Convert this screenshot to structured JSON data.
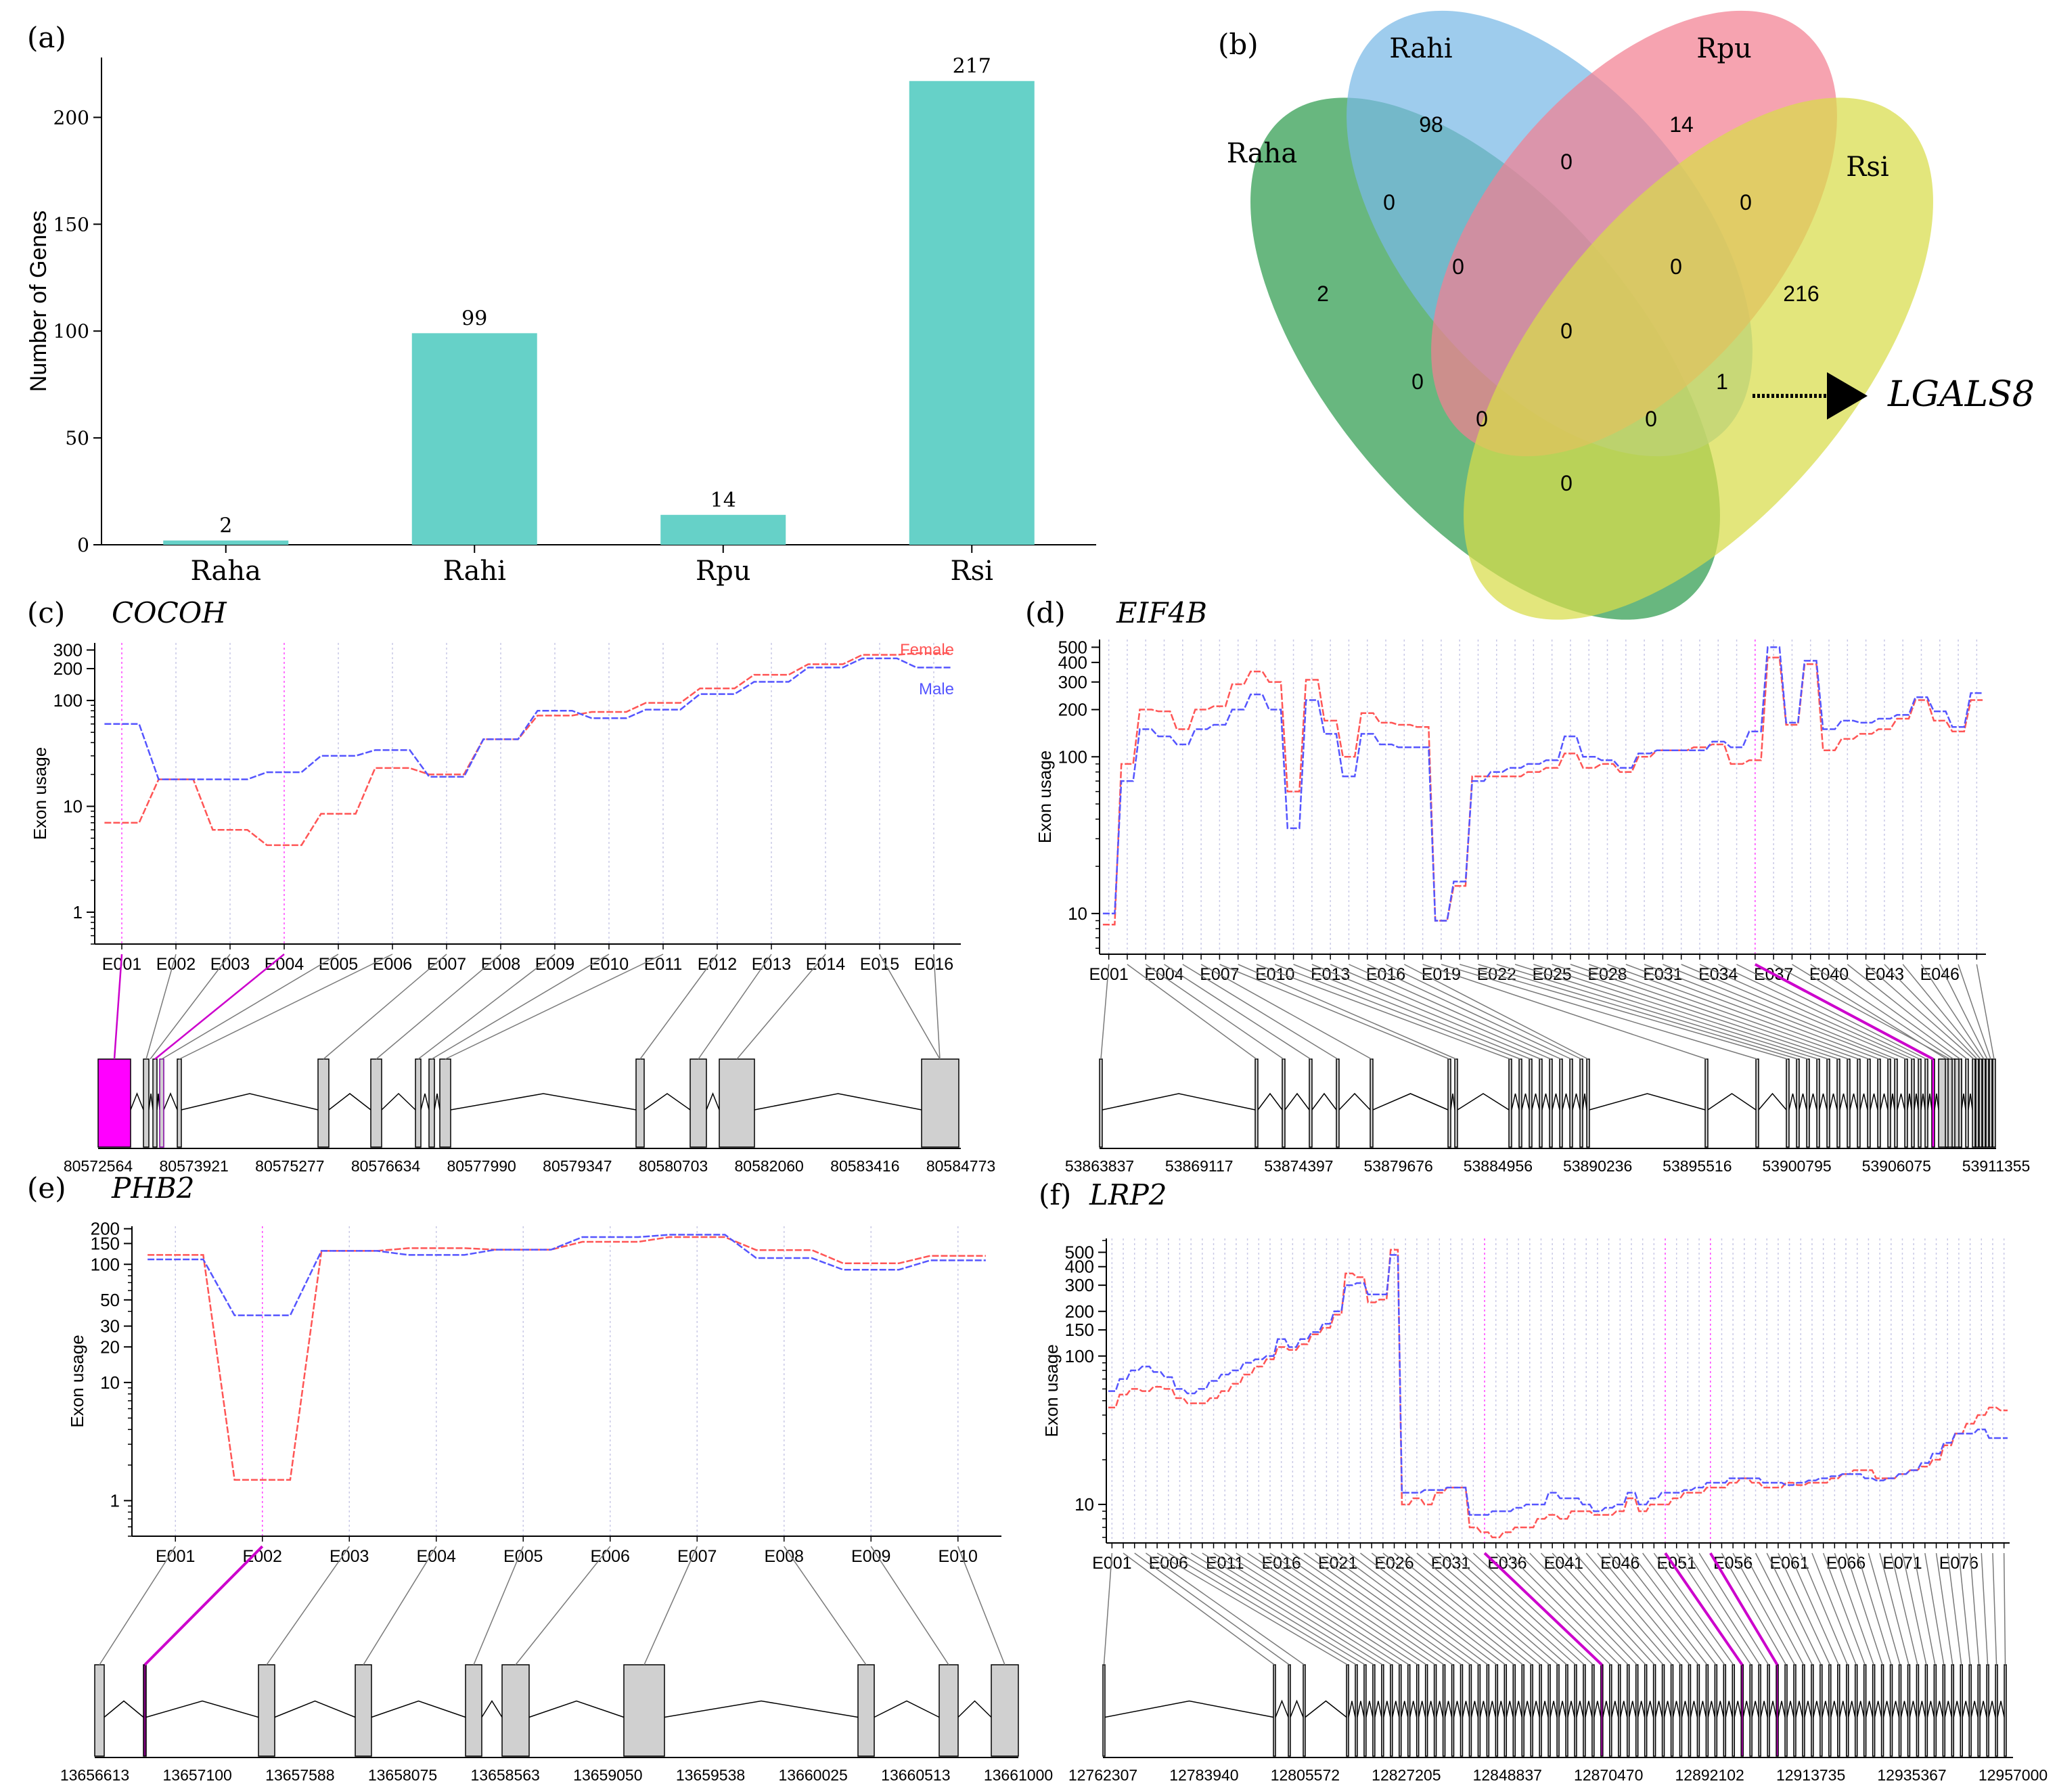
{
  "panels": {
    "a_label": "(a)",
    "b_label": "(b)",
    "c_label": "(c)",
    "d_label": "(d)",
    "e_label": "(e)",
    "f_label": "(f)"
  },
  "chart_data": [
    {
      "id": "a",
      "type": "bar",
      "ylabel": "Number of Genes",
      "categories": [
        "Raha",
        "Rahi",
        "Rpu",
        "Rsi"
      ],
      "values": [
        2,
        99,
        14,
        217
      ],
      "data_labels": [
        "2",
        "99",
        "14",
        "217"
      ],
      "ylim": [
        0,
        228
      ],
      "yticks": [
        0,
        50,
        100,
        150,
        200
      ],
      "color": "#66d1c8"
    },
    {
      "id": "b",
      "type": "venn",
      "sets": [
        {
          "name": "Raha",
          "color": "#2e9b4d"
        },
        {
          "name": "Rahi",
          "color": "#79b8e6"
        },
        {
          "name": "Rpu",
          "color": "#f37f92"
        },
        {
          "name": "Rsi",
          "color": "#d8dc4a"
        }
      ],
      "region_values": {
        "Rahi": "98",
        "Rpu": "14",
        "Raha": "2",
        "Rsi": "216",
        "Rahi_Rpu": "0",
        "Raha_Rahi": "0",
        "Rpu_Rsi": "0",
        "Raha_Rahi_Rpu": "0",
        "Rahi_Rpu_Rsi": "0",
        "all": "0",
        "Raha_Rpu": "0",
        "Rahi_Rsi": "1",
        "Raha_Rpu_Rsi": "0",
        "Raha_Rahi_Rsi": "0",
        "Raha_Rsi": "0"
      },
      "annotation": "LGALS8"
    },
    {
      "id": "c",
      "type": "line",
      "gene": "COCOH",
      "ylabel": "Exon usage",
      "yscale": "log",
      "yticks": [
        "1",
        "10",
        "100",
        "200",
        "300"
      ],
      "ylim": [
        0.5,
        350
      ],
      "x": [
        "E001",
        "E002",
        "E003",
        "E004",
        "E005",
        "E006",
        "E007",
        "E008",
        "E009",
        "E010",
        "E011",
        "E012",
        "E013",
        "E014",
        "E015",
        "E016"
      ],
      "series": [
        {
          "name": "Female",
          "color": "#ff5555",
          "values": [
            7,
            18,
            6,
            4.3,
            8.5,
            23,
            20,
            43,
            72,
            78,
            95,
            130,
            175,
            220,
            270,
            280
          ]
        },
        {
          "name": "Male",
          "color": "#5555ff",
          "values": [
            60,
            18,
            18,
            21,
            30,
            34,
            19,
            43,
            80,
            68,
            82,
            115,
            150,
            205,
            250,
            205
          ]
        }
      ],
      "highlight": [
        "E001",
        "E004"
      ],
      "coords": [
        "80572564",
        "80573921",
        "80575277",
        "80576634",
        "80577990",
        "80579347",
        "80580703",
        "80582060",
        "80583416",
        "80584773"
      ]
    },
    {
      "id": "d",
      "type": "line",
      "gene": "EIF4B",
      "ylabel": "Exon usage",
      "yscale": "log",
      "yticks": [
        "10",
        "100",
        "200",
        "300",
        "400",
        "500"
      ],
      "ylim": [
        5.5,
        560
      ],
      "x_tick_labels": [
        "E001",
        "E004",
        "E007",
        "E010",
        "E013",
        "E016",
        "E019",
        "E022",
        "E025",
        "E028",
        "E031",
        "E034",
        "E037",
        "E040",
        "E043",
        "E046"
      ],
      "n_exons": 48,
      "series": [
        {
          "name": "Female",
          "color": "#ff5555",
          "values": [
            8.5,
            90,
            200,
            195,
            150,
            200,
            210,
            290,
            350,
            300,
            60,
            310,
            170,
            100,
            190,
            165,
            160,
            155,
            9,
            15,
            75,
            75,
            75,
            80,
            85,
            105,
            85,
            90,
            80,
            100,
            110,
            110,
            115,
            120,
            90,
            95,
            430,
            160,
            390,
            110,
            130,
            140,
            150,
            175,
            230,
            170,
            145,
            230
          ]
        },
        {
          "name": "Male",
          "color": "#5555ff",
          "values": [
            10,
            70,
            150,
            135,
            120,
            150,
            160,
            200,
            250,
            200,
            35,
            230,
            140,
            75,
            140,
            120,
            115,
            115,
            9,
            16,
            70,
            80,
            85,
            90,
            95,
            135,
            100,
            95,
            85,
            105,
            110,
            110,
            110,
            125,
            115,
            145,
            500,
            165,
            410,
            150,
            170,
            165,
            175,
            185,
            240,
            195,
            155,
            255
          ]
        }
      ],
      "highlight": [
        "E036"
      ],
      "coords": [
        "53863837",
        "53869117",
        "53874397",
        "53879676",
        "53884956",
        "53890236",
        "53895516",
        "53900795",
        "53906075",
        "53911355"
      ]
    },
    {
      "id": "e",
      "type": "line",
      "gene": "PHB2",
      "ylabel": "Exon usage",
      "yscale": "log",
      "yticks": [
        "1",
        "10",
        "20",
        "30",
        "50",
        "100",
        "150",
        "200"
      ],
      "ylim": [
        0.5,
        210
      ],
      "x": [
        "E001",
        "E002",
        "E003",
        "E004",
        "E005",
        "E006",
        "E007",
        "E008",
        "E009",
        "E010"
      ],
      "series": [
        {
          "name": "Female",
          "color": "#ff5555",
          "values": [
            120,
            1.5,
            130,
            137,
            133,
            155,
            170,
            132,
            102,
            118
          ]
        },
        {
          "name": "Male",
          "color": "#5555ff",
          "values": [
            110,
            37,
            130,
            120,
            133,
            170,
            178,
            113,
            90,
            108
          ]
        }
      ],
      "highlight": [
        "E002"
      ],
      "coords": [
        "13656613",
        "13657100",
        "13657588",
        "13658075",
        "13658563",
        "13659050",
        "13659538",
        "13660025",
        "13660513",
        "13661000"
      ]
    },
    {
      "id": "f",
      "type": "line",
      "gene": "LRP2",
      "ylabel": "Exon usage",
      "yscale": "log",
      "yticks": [
        "10",
        "100",
        "150",
        "200",
        "300",
        "400",
        "500"
      ],
      "ylim": [
        5.5,
        620
      ],
      "x_tick_labels": [
        "E001",
        "E006",
        "E011",
        "E016",
        "E021",
        "E026",
        "E031",
        "E036",
        "E041",
        "E046",
        "E051",
        "E056",
        "E061",
        "E066",
        "E071",
        "E076"
      ],
      "n_exons": 80,
      "series": [
        {
          "name": "Female",
          "color": "#ff5555",
          "values": [
            45,
            55,
            60,
            58,
            62,
            60,
            52,
            48,
            48,
            52,
            58,
            65,
            75,
            85,
            95,
            115,
            110,
            120,
            140,
            155,
            190,
            360,
            340,
            230,
            240,
            520,
            10,
            11,
            10,
            12,
            13,
            13,
            7,
            6.5,
            6,
            6.5,
            7,
            7,
            8,
            8.5,
            8,
            9,
            9,
            8.5,
            8.5,
            9,
            11,
            9,
            10,
            10,
            11,
            12,
            12,
            13,
            13,
            14,
            15,
            14,
            13,
            13,
            14,
            13.5,
            14,
            14,
            15,
            16,
            17,
            17,
            15,
            15,
            16,
            17,
            18,
            20,
            25,
            30,
            35,
            40,
            45,
            43
          ]
        },
        {
          "name": "Male",
          "color": "#5555ff",
          "values": [
            58,
            70,
            80,
            85,
            78,
            72,
            60,
            56,
            60,
            68,
            75,
            80,
            90,
            95,
            100,
            130,
            115,
            130,
            145,
            165,
            200,
            300,
            310,
            260,
            260,
            480,
            12,
            12,
            12.5,
            12.5,
            13,
            13,
            8.5,
            8.5,
            9,
            9,
            9.5,
            10,
            10,
            12,
            11,
            11,
            10,
            9,
            9.5,
            10,
            12,
            10,
            11,
            12,
            12,
            12.5,
            13,
            14,
            14,
            15,
            15,
            15,
            14,
            14,
            13.5,
            14,
            14.5,
            15,
            15.5,
            16,
            16,
            15,
            14.5,
            15,
            16,
            17,
            19,
            22,
            26,
            30,
            30,
            32,
            28,
            28
          ]
        }
      ],
      "highlight": [
        "E034",
        "E050",
        "E054"
      ],
      "coords": [
        "12762307",
        "12783940",
        "12805572",
        "12827205",
        "12848837",
        "12870470",
        "12892102",
        "12913735",
        "12935367",
        "12957000"
      ]
    }
  ]
}
